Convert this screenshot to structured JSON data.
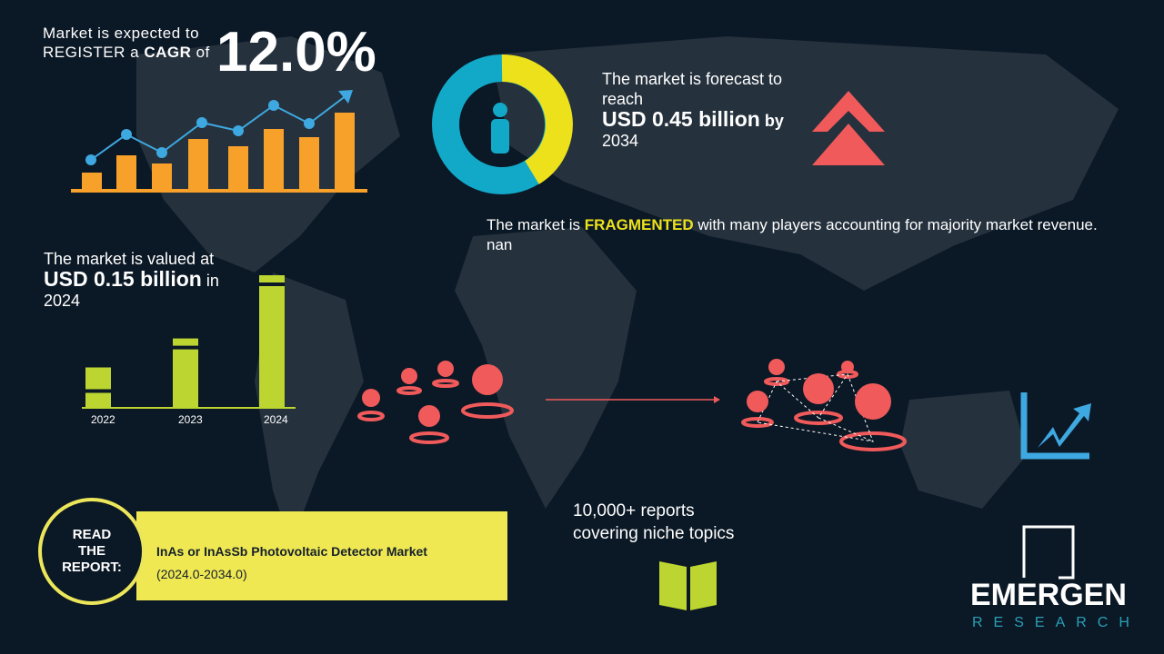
{
  "cagr": {
    "line1": "Market is expected to",
    "line2_a": "REGISTER a ",
    "line2_b": "CAGR",
    "line2_c": " of",
    "value": "12.0%"
  },
  "forecast": {
    "line1": "The market is forecast to",
    "line2": "reach",
    "amount": "USD 0.45 billion",
    "by": " by",
    "year": "2034"
  },
  "fragmented": {
    "a": "The market is ",
    "b": "FRAGMENTED",
    "c": " with many players accounting for majority market revenue. nan"
  },
  "valued": {
    "line1": "The market is valued at",
    "amount": "USD 0.15 billion",
    "in": " in",
    "year": "2024"
  },
  "chart_data": {
    "type": "bar",
    "categories": [
      "2022",
      "2023",
      "2024"
    ],
    "relative_levels": [
      0.3,
      0.52,
      1.0
    ],
    "color": "#bcd531"
  },
  "reports": {
    "line1": "10,000+ reports",
    "line2": "covering niche topics"
  },
  "read": {
    "label_1": "READ",
    "label_2": "THE",
    "label_3": "REPORT:",
    "title": "InAs or InAsSb Photovoltaic Detector Market",
    "period": "(2024.0-2034.0)"
  },
  "logo": {
    "name": "EMERGEN",
    "sub": "RESEARCH"
  },
  "colors": {
    "bg": "#0b1825",
    "orange": "#f7a02a",
    "blue": "#3ea8e0",
    "yellow": "#ece11b",
    "red": "#f05a5b",
    "green": "#bcd531",
    "teal": "#12a9c9"
  }
}
